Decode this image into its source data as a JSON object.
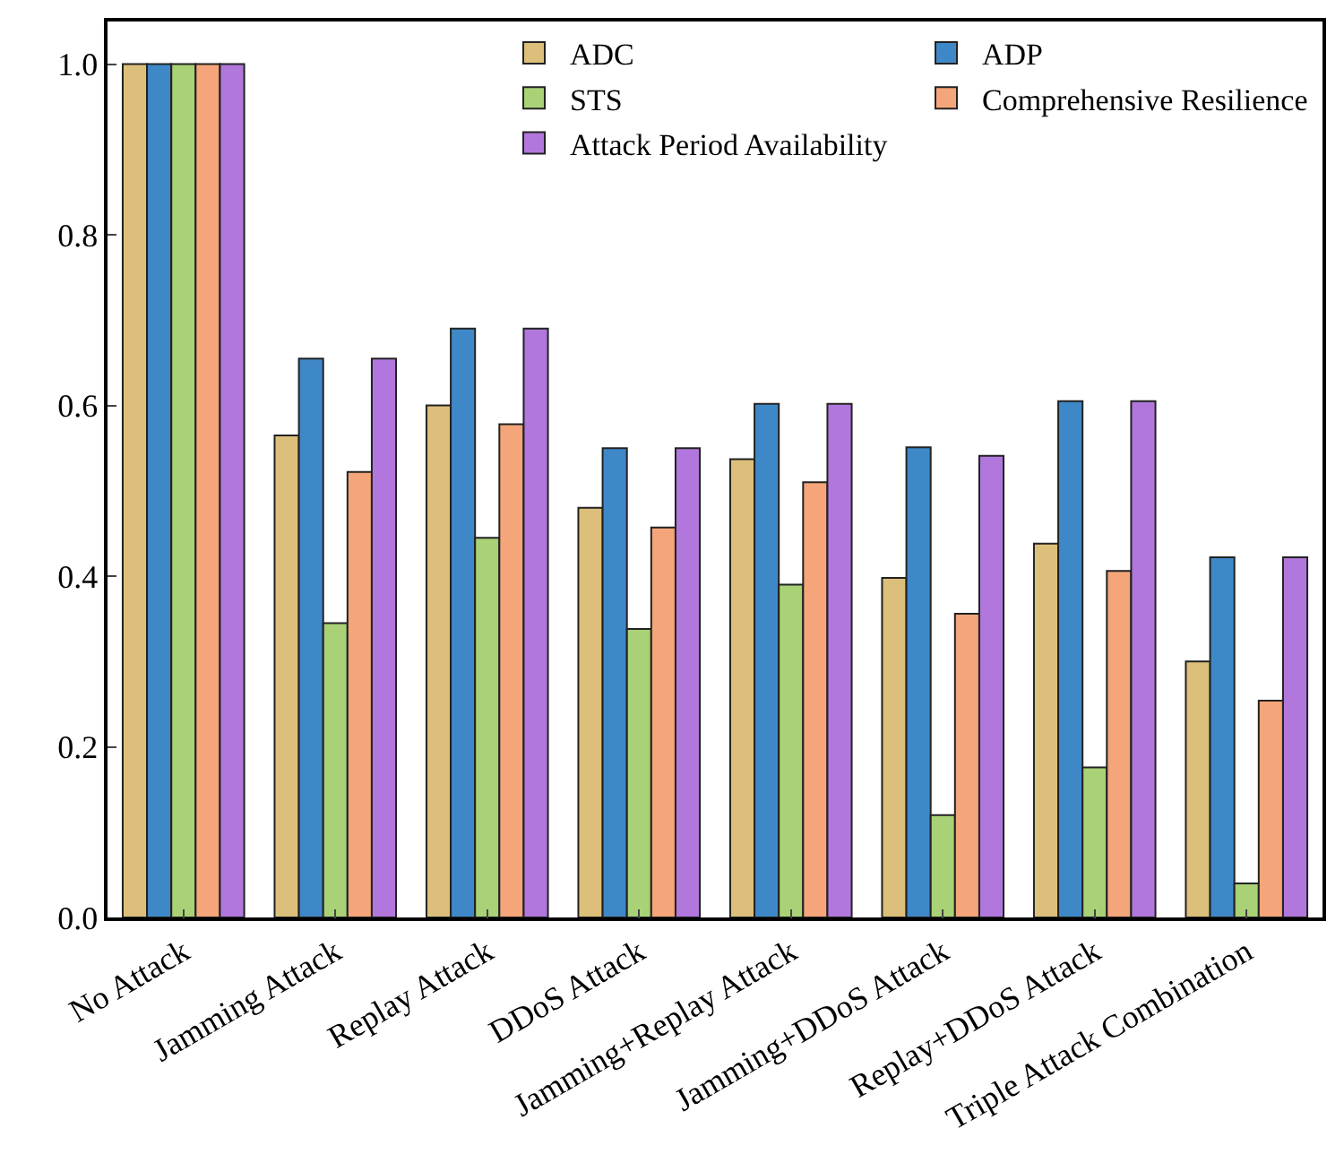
{
  "chart_data": {
    "type": "bar",
    "categories": [
      "No Attack",
      "Jamming Attack",
      "Replay Attack",
      "DDoS Attack",
      "Jamming+Replay Attack",
      "Jamming+DDoS Attack",
      "Replay+DDoS Attack",
      "Triple Attack Combination"
    ],
    "series": [
      {
        "name": "ADC",
        "color": "#dcbf7a",
        "values": [
          1.0,
          0.565,
          0.6,
          0.48,
          0.537,
          0.398,
          0.438,
          0.3
        ]
      },
      {
        "name": "ADP",
        "color": "#3f88c8",
        "values": [
          1.0,
          0.655,
          0.69,
          0.55,
          0.602,
          0.551,
          0.605,
          0.422
        ]
      },
      {
        "name": "STS",
        "color": "#a9d176",
        "values": [
          1.0,
          0.345,
          0.445,
          0.338,
          0.39,
          0.12,
          0.176,
          0.04
        ]
      },
      {
        "name": "Comprehensive Resilience",
        "color": "#f4a57a",
        "values": [
          1.0,
          0.522,
          0.578,
          0.457,
          0.51,
          0.356,
          0.406,
          0.254
        ]
      },
      {
        "name": "Attack Period Availability",
        "color": "#b177dd",
        "values": [
          1.0,
          0.655,
          0.69,
          0.55,
          0.602,
          0.541,
          0.605,
          0.422
        ]
      }
    ],
    "ylim": [
      0,
      1.05
    ],
    "yticks": [
      {
        "value": 0,
        "label": "0.0"
      },
      {
        "value": 0.2,
        "label": "0.2"
      },
      {
        "value": 0.4,
        "label": "0.4"
      },
      {
        "value": 0.6,
        "label": "0.6"
      },
      {
        "value": 0.8,
        "label": "0.8"
      },
      {
        "value": 1,
        "label": "1.0"
      }
    ],
    "grid": false,
    "legend": "top right"
  }
}
